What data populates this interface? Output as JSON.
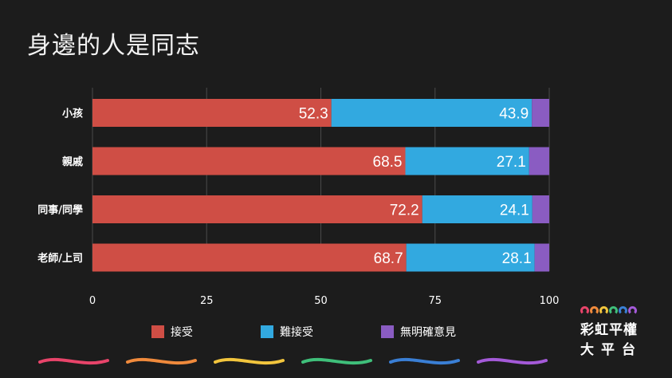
{
  "title": "身邊的人是同志",
  "chart_data": {
    "type": "bar",
    "orientation": "horizontal",
    "stacked": true,
    "categories": [
      "小孩",
      "親戚",
      "同事/同學",
      "老師/上司"
    ],
    "series": [
      {
        "name": "接受",
        "values": [
          52.3,
          68.5,
          72.2,
          68.7
        ],
        "color": "#cf4e45"
      },
      {
        "name": "難接受",
        "values": [
          43.9,
          27.1,
          24.1,
          28.1
        ],
        "color": "#32a9e0"
      },
      {
        "name": "無明確意見",
        "values": [
          3.8,
          4.4,
          3.7,
          3.2
        ],
        "color": "#8a5cc2"
      }
    ],
    "labeled_series": [
      "接受",
      "難接受"
    ],
    "xlim": [
      0,
      100
    ],
    "xticks": [
      "0",
      "25",
      "50",
      "75",
      "100"
    ],
    "grid": true,
    "legend": "bottom"
  },
  "legend": {
    "items": [
      {
        "label": "接受",
        "color": "#cf4e45"
      },
      {
        "label": "難接受",
        "color": "#32a9e0"
      },
      {
        "label": "無明確意見",
        "color": "#8a5cc2"
      }
    ]
  },
  "logo": {
    "line1": "彩虹平權",
    "line2": "大平台",
    "arc_colors": [
      "#e8446a",
      "#f08a3c",
      "#f2c53d",
      "#3fbf7a",
      "#3a7fd5",
      "#a45ad8"
    ]
  },
  "wave_colors": [
    "#e8446a",
    "#f08a3c",
    "#f2c53d",
    "#3fbf7a",
    "#3a7fd5",
    "#a45ad8"
  ]
}
